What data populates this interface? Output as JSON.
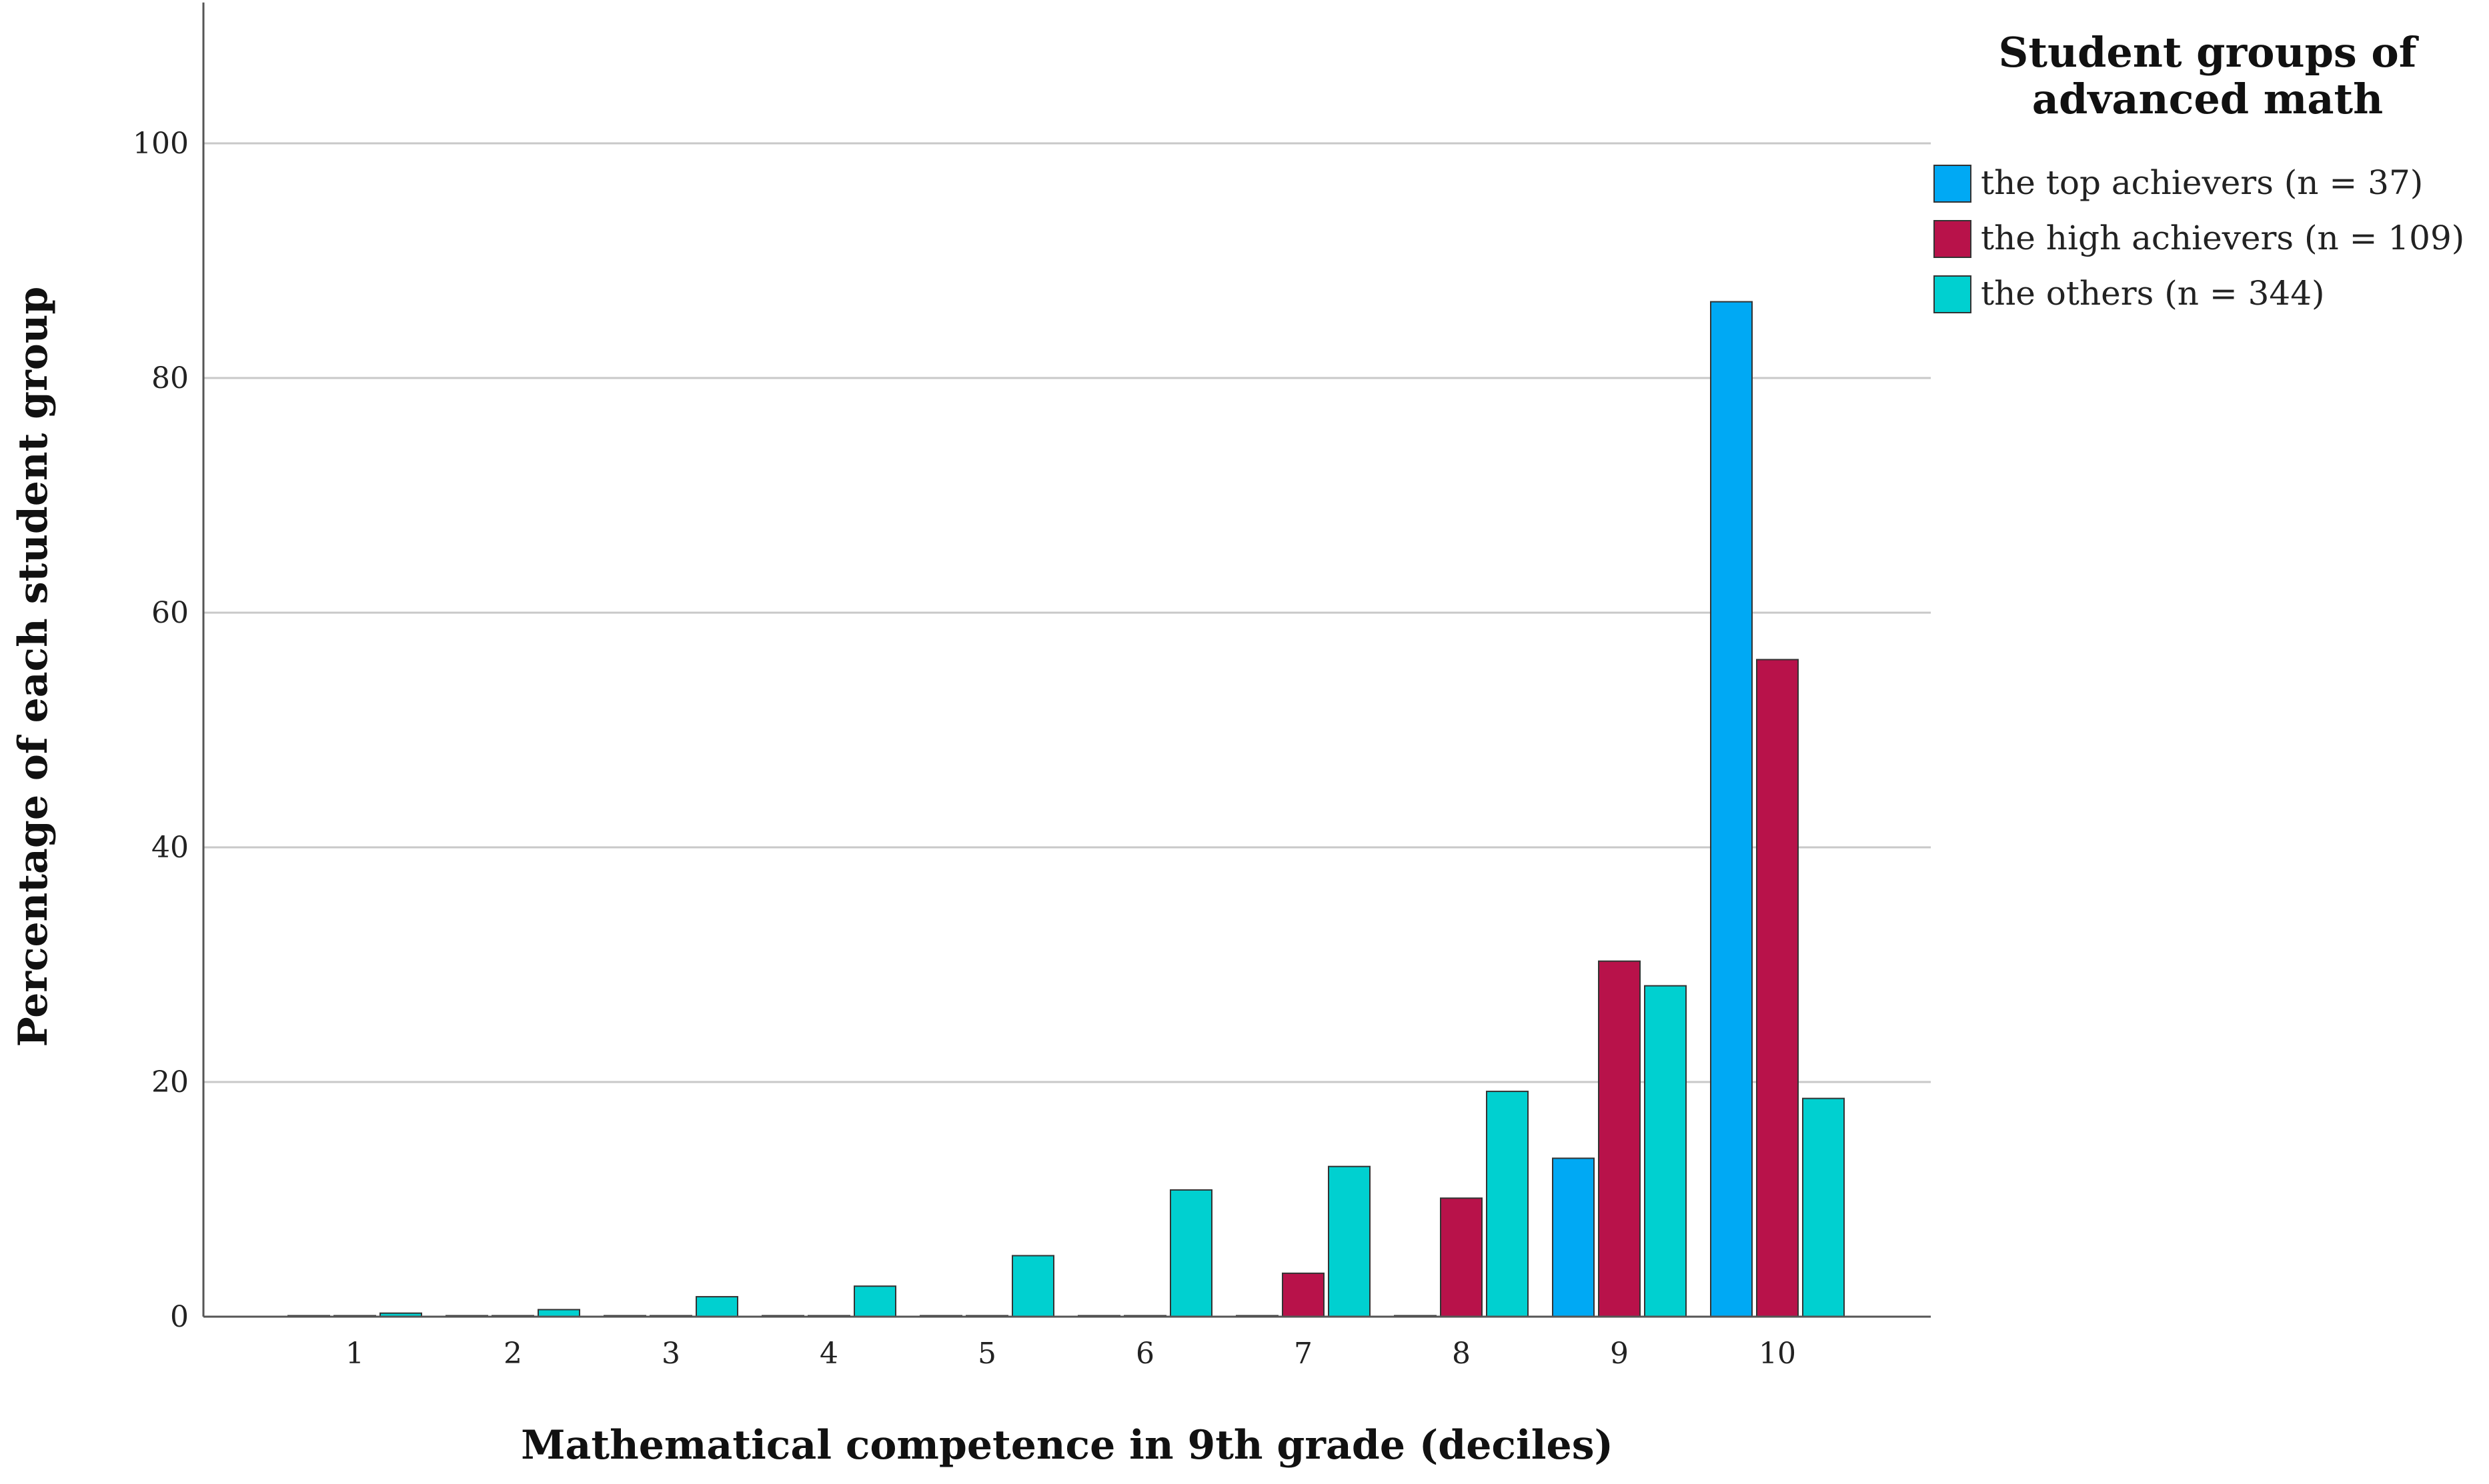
{
  "chart_data": {
    "type": "bar",
    "title": "",
    "xlabel": "Mathematical competence in 9th grade (deciles)",
    "ylabel": "Percentage of each student group",
    "categories": [
      "1",
      "2",
      "3",
      "4",
      "5",
      "6",
      "7",
      "8",
      "9",
      "10"
    ],
    "ylim": [
      0,
      112
    ],
    "yticks": [
      0,
      20,
      40,
      60,
      80,
      100
    ],
    "ytick_labels": [
      "0",
      "20",
      "40",
      "60",
      "80",
      "100"
    ],
    "grid": true,
    "legend_title_lines": [
      "Student groups of",
      "advanced math"
    ],
    "legend_position": "top-right",
    "series": [
      {
        "name": "the top achievers (n = 37)",
        "color": "#00a9f4",
        "values": [
          0,
          0,
          0,
          0,
          0,
          0,
          0,
          0,
          13.5,
          86.5
        ]
      },
      {
        "name": "the high achievers (n = 109)",
        "color": "#b8124a",
        "values": [
          0,
          0,
          0,
          0,
          0,
          0,
          3.7,
          10.1,
          30.3,
          56.0
        ]
      },
      {
        "name": "the others (n = 344)",
        "color": "#00d0d0",
        "values": [
          0.3,
          0.6,
          1.7,
          2.6,
          5.2,
          10.8,
          12.8,
          19.2,
          28.2,
          18.6
        ]
      }
    ]
  }
}
